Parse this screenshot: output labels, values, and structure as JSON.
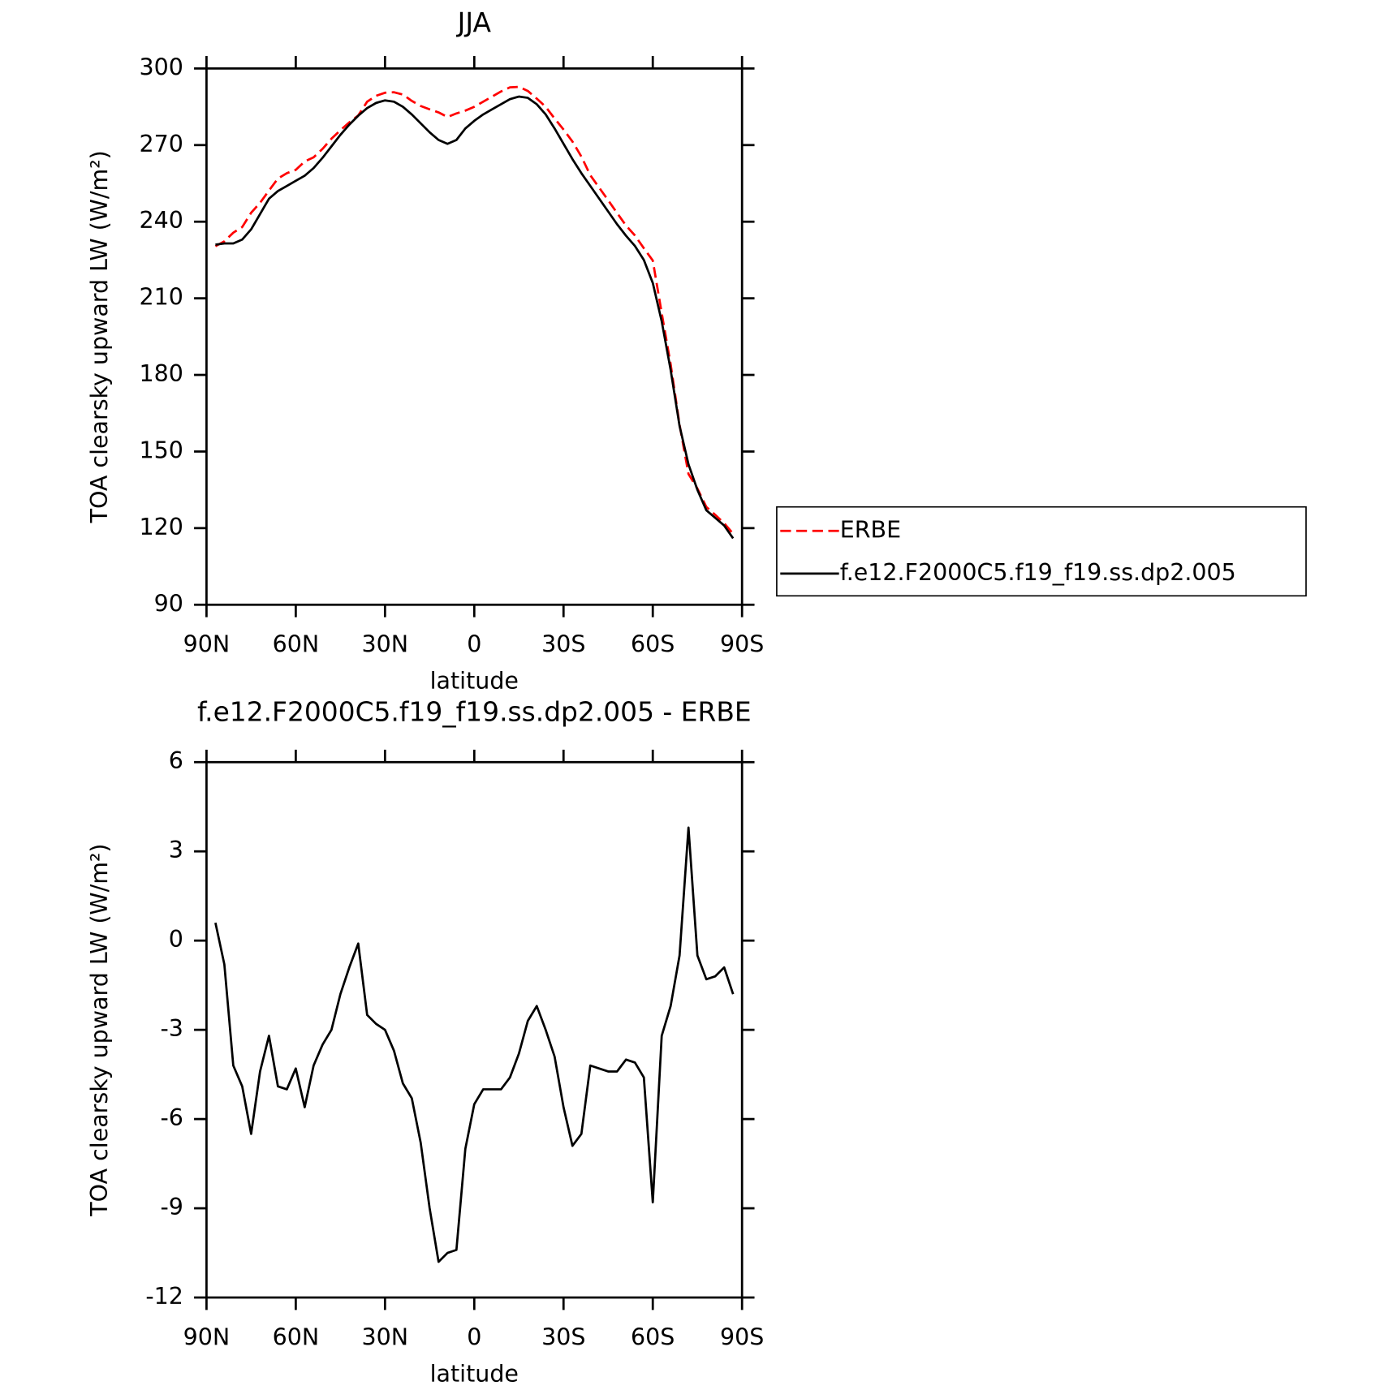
{
  "chart_data": [
    {
      "type": "line",
      "title": "JJA",
      "ylabel": "TOA clearsky upward LW (W/m²)",
      "xlabel": "latitude",
      "x": [
        87,
        84,
        81,
        78,
        75,
        72,
        69,
        66,
        63,
        60,
        57,
        54,
        51,
        48,
        45,
        42,
        39,
        36,
        33,
        30,
        27,
        24,
        21,
        18,
        15,
        12,
        9,
        6,
        3,
        0,
        -3,
        -6,
        -9,
        -12,
        -15,
        -18,
        -21,
        -24,
        -27,
        -30,
        -33,
        -36,
        -39,
        -42,
        -45,
        -48,
        -51,
        -54,
        -57,
        -60,
        -63,
        -66,
        -69,
        -72,
        -75,
        -78,
        -81,
        -84,
        -87
      ],
      "series": [
        {
          "name": "ERBE",
          "color": "#ff0000",
          "dash": true,
          "values": [
            230.4,
            232.3,
            235.7,
            237.9,
            243.5,
            247.4,
            252.2,
            256.9,
            259,
            260.3,
            263.6,
            265.2,
            268.5,
            272.5,
            275.8,
            278.9,
            281.6,
            287,
            289.3,
            290.5,
            290.7,
            289.8,
            287.3,
            285.3,
            284,
            282.8,
            281,
            282.4,
            283.5,
            285,
            287,
            289,
            291,
            292.6,
            292.8,
            291.2,
            288.2,
            285,
            280.4,
            276.1,
            271.4,
            265.5,
            258.2,
            253.3,
            248.4,
            243.4,
            238.5,
            234.6,
            229.6,
            224.8,
            204.2,
            184.2,
            160.5,
            141.2,
            135.5,
            128.3,
            125.2,
            121.9,
            117.8
          ]
        },
        {
          "name": "f.e12.F2000C5.f19_f19.ss.dp2.005",
          "color": "#000000",
          "dash": false,
          "values": [
            231,
            231.5,
            231.5,
            233,
            237,
            243,
            249,
            252,
            254,
            256,
            258,
            261,
            265,
            269.5,
            274,
            278,
            281.5,
            284.5,
            286.5,
            287.5,
            287,
            285,
            282,
            278.5,
            275,
            272,
            270.5,
            272,
            276.5,
            279.5,
            282,
            284,
            286,
            288,
            289,
            288.5,
            286,
            282,
            276.5,
            270.5,
            264.5,
            259,
            254,
            249,
            244,
            239,
            234.5,
            230.5,
            225,
            216,
            201,
            182,
            160,
            145,
            135,
            127,
            124,
            121,
            116
          ]
        }
      ],
      "xlim": [
        90,
        -90
      ],
      "xticks": [
        {
          "value": 90,
          "label": "90N"
        },
        {
          "value": 60,
          "label": "60N"
        },
        {
          "value": 30,
          "label": "30N"
        },
        0,
        {
          "value": -30,
          "label": "30S"
        },
        {
          "value": -60,
          "label": "60S"
        },
        {
          "value": -90,
          "label": "90S"
        }
      ],
      "ylim": [
        90,
        300
      ],
      "yticks": [
        90,
        120,
        150,
        180,
        210,
        240,
        270,
        300
      ],
      "legend": "right"
    },
    {
      "type": "line",
      "title": "f.e12.F2000C5.f19_f19.ss.dp2.005 - ERBE",
      "ylabel": "TOA clearsky upward LW (W/m²)",
      "xlabel": "latitude",
      "x": [
        87,
        84,
        81,
        78,
        75,
        72,
        69,
        66,
        63,
        60,
        57,
        54,
        51,
        48,
        45,
        42,
        39,
        36,
        33,
        30,
        27,
        24,
        21,
        18,
        15,
        12,
        9,
        6,
        3,
        0,
        -3,
        -6,
        -9,
        -12,
        -15,
        -18,
        -21,
        -24,
        -27,
        -30,
        -33,
        -36,
        -39,
        -42,
        -45,
        -48,
        -51,
        -54,
        -57,
        -60,
        -63,
        -66,
        -69,
        -72,
        -75,
        -78,
        -81,
        -84,
        -87
      ],
      "series": [
        {
          "color": "#000000",
          "dash": false,
          "values": [
            0.6,
            -0.8,
            -4.2,
            -4.9,
            -6.5,
            -4.4,
            -3.2,
            -4.9,
            -5.0,
            -4.3,
            -5.6,
            -4.2,
            -3.5,
            -3.0,
            -1.8,
            -0.9,
            -0.1,
            -2.5,
            -2.8,
            -3.0,
            -3.7,
            -4.8,
            -5.3,
            -6.8,
            -9.0,
            -10.8,
            -10.5,
            -10.4,
            -7.0,
            -5.5,
            -5.0,
            -5.0,
            -5.0,
            -4.6,
            -3.8,
            -2.7,
            -2.2,
            -3.0,
            -3.9,
            -5.6,
            -6.9,
            -6.5,
            -4.2,
            -4.3,
            -4.4,
            -4.4,
            -4.0,
            -4.1,
            -4.6,
            -8.8,
            -3.2,
            -2.2,
            -0.5,
            3.8,
            -0.5,
            -1.3,
            -1.2,
            -0.9,
            -1.8
          ]
        }
      ],
      "xlim": [
        90,
        -90
      ],
      "xticks": [
        {
          "value": 90,
          "label": "90N"
        },
        {
          "value": 60,
          "label": "60N"
        },
        {
          "value": 30,
          "label": "30N"
        },
        0,
        {
          "value": -30,
          "label": "30S"
        },
        {
          "value": -60,
          "label": "60S"
        },
        {
          "value": -90,
          "label": "90S"
        }
      ],
      "ylim": [
        -12,
        6
      ],
      "yticks": [
        -12,
        -9,
        -6,
        -3,
        0,
        3,
        6
      ]
    }
  ]
}
